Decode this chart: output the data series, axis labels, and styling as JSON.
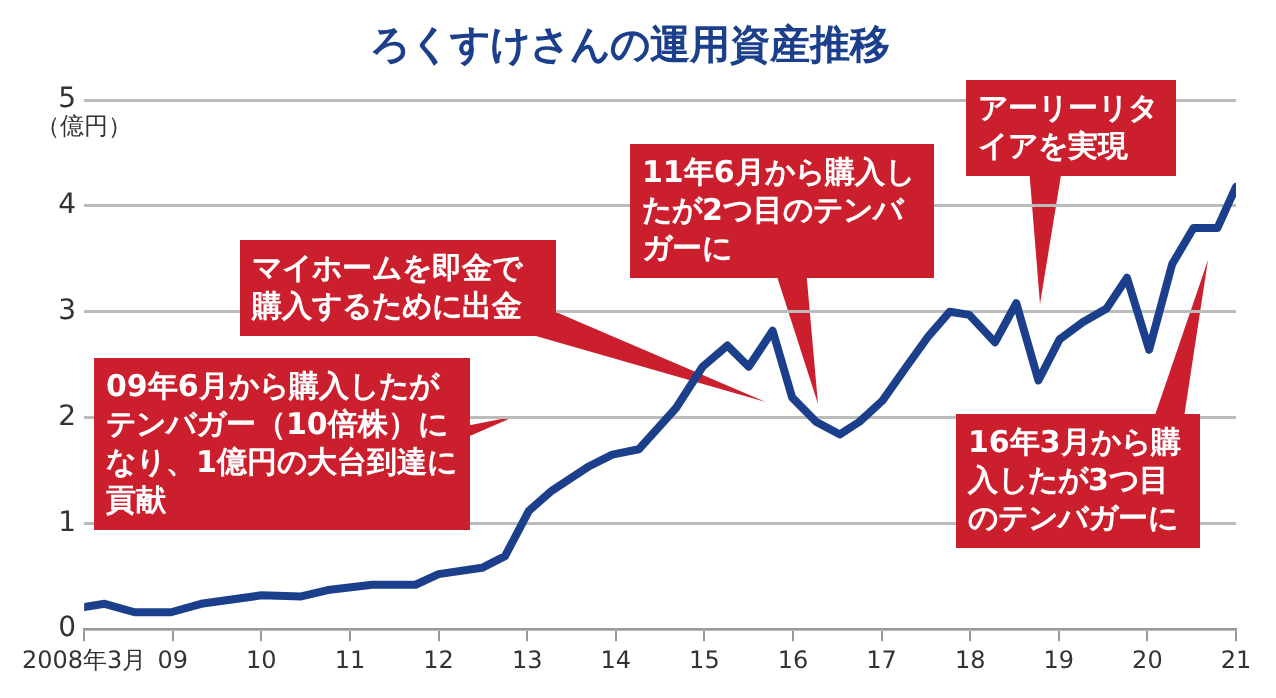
{
  "chart_data": {
    "type": "line",
    "title": "ろくすけさんの運用資産推移",
    "ylabel": "（億円）",
    "annotations": [
      "09年6月から購入したがテンバガー（10倍株）になり、1億円の大台到達に貢献",
      "マイホームを即金で購入するために出金",
      "11年6月から購入したが2つ目のテンバガーに",
      "アーリーリタイアを実現",
      "16年3月から購入したが3つ目のテンバガーに"
    ],
    "series": [
      {
        "color": "#1c3f8c",
        "x": [
          2008.0,
          2008.23,
          2008.57,
          2008.98,
          2009.32,
          2010.0,
          2010.45,
          2010.75,
          2011.25,
          2011.74,
          2012.0,
          2012.49,
          2012.75,
          2013.02,
          2013.28,
          2013.7,
          2013.96,
          2014.26,
          2014.68,
          2014.98,
          2015.26,
          2015.5,
          2015.77,
          2015.99,
          2016.26,
          2016.53,
          2016.75,
          2017.01,
          2017.28,
          2017.53,
          2017.77,
          2017.99,
          2018.28,
          2018.52,
          2018.77,
          2019.01,
          2019.27,
          2019.54,
          2019.77,
          2020.02,
          2020.28,
          2020.52,
          2020.79,
          2021.0
        ],
        "values": [
          0.21,
          0.24,
          0.16,
          0.16,
          0.24,
          0.32,
          0.31,
          0.37,
          0.42,
          0.42,
          0.52,
          0.58,
          0.69,
          1.12,
          1.31,
          1.54,
          1.65,
          1.7,
          2.09,
          2.48,
          2.68,
          2.48,
          2.82,
          2.19,
          1.96,
          1.84,
          1.96,
          2.16,
          2.48,
          2.77,
          3.0,
          2.97,
          2.71,
          3.08,
          2.35,
          2.74,
          2.9,
          3.03,
          3.32,
          2.64,
          3.45,
          3.79,
          3.79,
          4.18
        ]
      }
    ],
    "xlim": [
      2008,
      2021
    ],
    "xticks": [
      {
        "value": 2008,
        "label": "2008年3月"
      },
      {
        "value": 2009,
        "label": "09"
      },
      {
        "value": 2010,
        "label": "10"
      },
      {
        "value": 2011,
        "label": "11"
      },
      {
        "value": 2012,
        "label": "12"
      },
      {
        "value": 2013,
        "label": "13"
      },
      {
        "value": 2014,
        "label": "14"
      },
      {
        "value": 2015,
        "label": "15"
      },
      {
        "value": 2016,
        "label": "16"
      },
      {
        "value": 2017,
        "label": "17"
      },
      {
        "value": 2018,
        "label": "18"
      },
      {
        "value": 2019,
        "label": "19"
      },
      {
        "value": 2020,
        "label": "20"
      },
      {
        "value": 2021,
        "label": "21"
      }
    ],
    "ylim": [
      0,
      5
    ],
    "yticks": [
      0,
      1,
      2,
      3,
      4,
      5
    ],
    "grid": "y",
    "legend": false,
    "marker": "none",
    "line_style": "solid"
  }
}
